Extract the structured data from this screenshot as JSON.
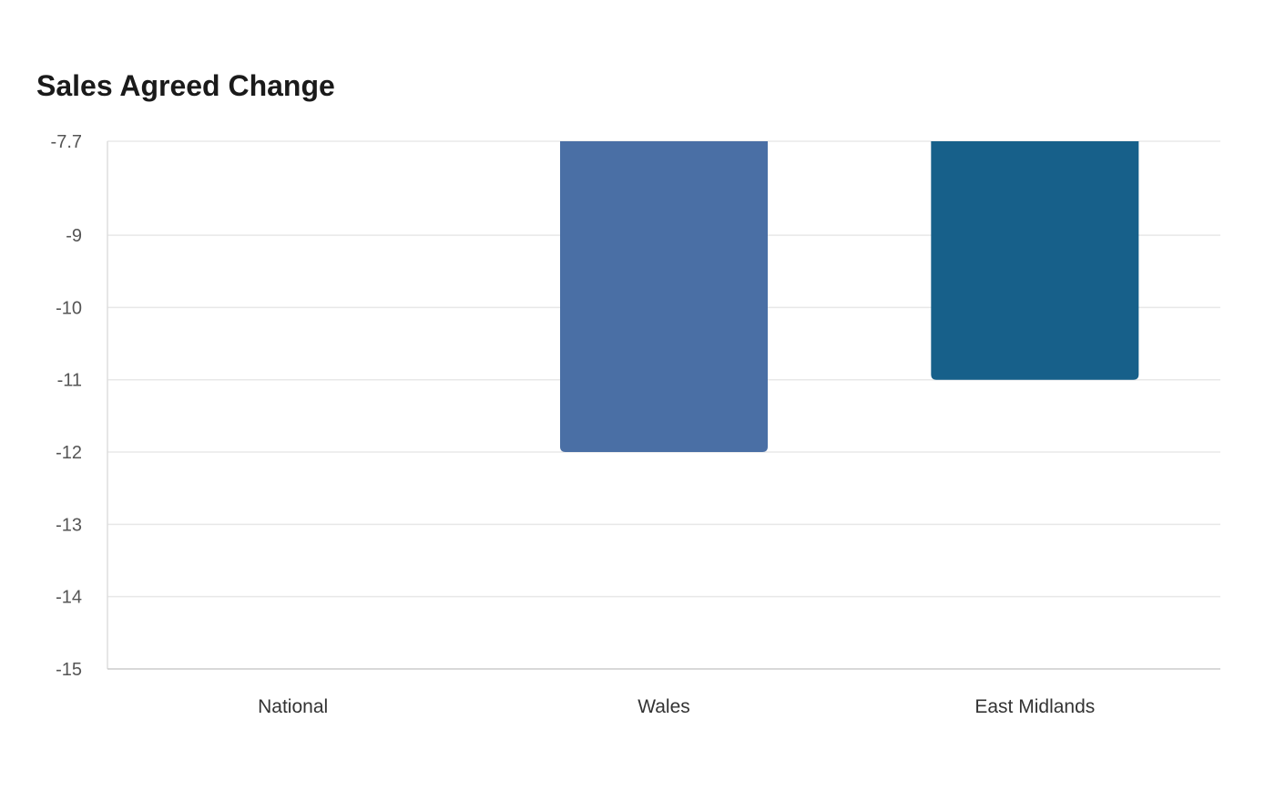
{
  "chart_data": {
    "type": "bar",
    "title": "Sales Agreed Change",
    "categories": [
      "National",
      "Wales",
      "East Midlands"
    ],
    "values": [
      null,
      -12,
      -11
    ],
    "colors": [
      "#4a6fa5",
      "#4a6fa5",
      "#17608a"
    ],
    "ylim": [
      -15,
      -7.7
    ],
    "yticks": [
      -15,
      -14,
      -13,
      -12,
      -11,
      -10,
      -9,
      -7.7
    ],
    "ytick_labels": [
      "-15",
      "-14",
      "-13",
      "-12",
      "-11",
      "-10",
      "-9",
      "-7.7"
    ],
    "grid": true,
    "legend": "none",
    "xlabel": "",
    "ylabel": ""
  }
}
